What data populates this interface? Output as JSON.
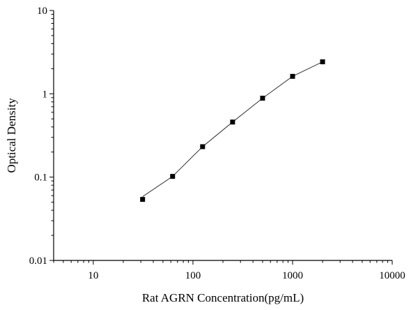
{
  "chart_data": {
    "type": "scatter",
    "title": "",
    "xlabel": "Rat AGRN Concentration(pg/mL)",
    "ylabel": "Optical Density",
    "xscale": "log",
    "yscale": "log",
    "xlim": [
      4,
      10000
    ],
    "ylim": [
      0.01,
      10
    ],
    "xticks": [
      10,
      100,
      1000,
      10000
    ],
    "xtick_labels": [
      "10",
      "100",
      "1000",
      "10000"
    ],
    "yticks": [
      0.01,
      0.1,
      1,
      10
    ],
    "ytick_labels": [
      "0.01",
      "0.1",
      "1",
      "10"
    ],
    "grid": false,
    "legend": "none",
    "series": [
      {
        "x": [
          31.25,
          62.5,
          125,
          250,
          500,
          1000,
          2000
        ],
        "y": [
          0.054,
          0.102,
          0.232,
          0.458,
          0.885,
          1.62,
          2.42
        ],
        "marker": "square",
        "fit_line": true,
        "color": "#000000"
      }
    ]
  }
}
